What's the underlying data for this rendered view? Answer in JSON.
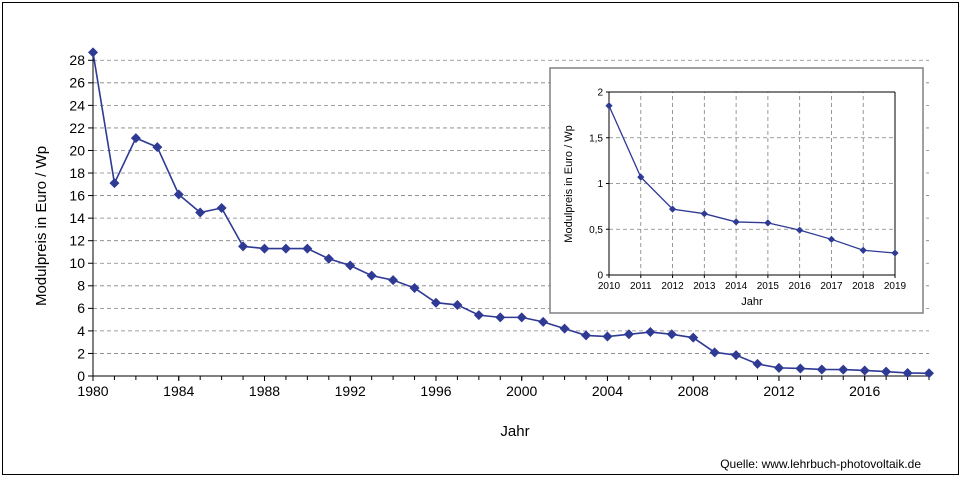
{
  "source_text": "Quelle: www.lehrbuch-photovoltaik.de",
  "colors": {
    "series": "#2E3A94",
    "grid": "#808080",
    "frame": "#000000",
    "inset_border": "#808080"
  },
  "chart_data": [
    {
      "type": "line",
      "xlabel": "Jahr",
      "ylabel": "Modulpreis in Euro / Wp",
      "xlim": [
        1980,
        2019
      ],
      "ylim": [
        0,
        29
      ],
      "x_ticks": [
        1980,
        1984,
        1988,
        1992,
        1996,
        2000,
        2004,
        2008,
        2012,
        2016
      ],
      "y_ticks": [
        0,
        2,
        4,
        6,
        8,
        10,
        12,
        14,
        16,
        18,
        20,
        22,
        24,
        26,
        28
      ],
      "grid": "horizontal dashed",
      "marker": "diamond",
      "series": [
        {
          "x": [
            1980,
            1981,
            1982,
            1983,
            1984,
            1985,
            1986,
            1987,
            1988,
            1989,
            1990,
            1991,
            1992,
            1993,
            1994,
            1995,
            1996,
            1997,
            1998,
            1999,
            2000,
            2001,
            2002,
            2003,
            2004,
            2005,
            2006,
            2007,
            2008,
            2009,
            2010,
            2011,
            2012,
            2013,
            2014,
            2015,
            2016,
            2017,
            2018,
            2019
          ],
          "values": [
            28.7,
            17.1,
            21.1,
            20.3,
            16.1,
            14.5,
            14.9,
            11.5,
            11.3,
            11.3,
            11.3,
            10.4,
            9.8,
            8.9,
            8.5,
            7.8,
            6.5,
            6.3,
            5.4,
            5.2,
            5.2,
            4.8,
            4.2,
            3.6,
            3.5,
            3.7,
            3.9,
            3.7,
            3.4,
            2.1,
            1.85,
            1.07,
            0.72,
            0.67,
            0.58,
            0.57,
            0.49,
            0.39,
            0.27,
            0.24
          ]
        }
      ]
    },
    {
      "type": "line",
      "xlabel": "Jahr",
      "ylabel": "Modulpreis in Euro / Wp",
      "xlim": [
        2010,
        2019
      ],
      "ylim": [
        0,
        2
      ],
      "x_ticks": [
        2010,
        2011,
        2012,
        2013,
        2014,
        2015,
        2016,
        2017,
        2018,
        2019
      ],
      "y_ticks": [
        0,
        0.5,
        1,
        1.5,
        2
      ],
      "y_tick_labels": [
        "0",
        "0,5",
        "1",
        "1,5",
        "2"
      ],
      "grid": "horizontal and vertical dashed",
      "marker": "diamond",
      "series": [
        {
          "x": [
            2010,
            2011,
            2012,
            2013,
            2014,
            2015,
            2016,
            2017,
            2018,
            2019
          ],
          "values": [
            1.85,
            1.07,
            0.72,
            0.67,
            0.58,
            0.57,
            0.49,
            0.39,
            0.27,
            0.24
          ]
        }
      ]
    }
  ]
}
